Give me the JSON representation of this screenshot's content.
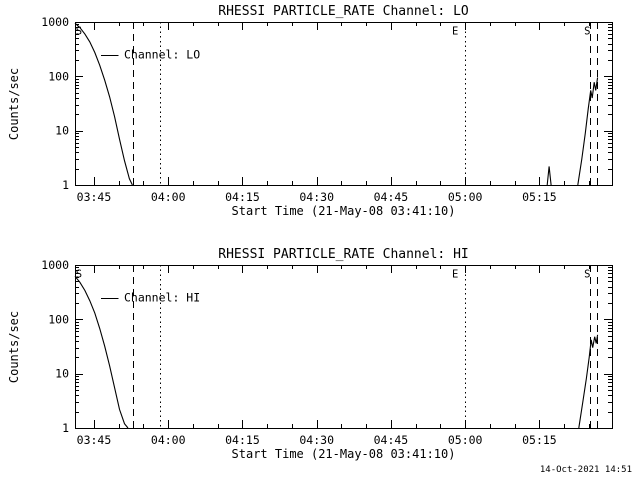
{
  "window": {
    "timestamp": "14-Oct-2021 14:51"
  },
  "time_axis": {
    "start_time": "21-May-08 03:41:10",
    "t_max_minutes": 108.5,
    "minor_step": 5,
    "major_ticks": [
      {
        "t": 3.8333,
        "label": "03:45"
      },
      {
        "t": 18.8333,
        "label": "04:00"
      },
      {
        "t": 33.8333,
        "label": "04:15"
      },
      {
        "t": 48.8333,
        "label": "04:30"
      },
      {
        "t": 63.8333,
        "label": "04:45"
      },
      {
        "t": 78.8333,
        "label": "05:00"
      },
      {
        "t": 93.8333,
        "label": "05:15"
      }
    ]
  },
  "chart_data": [
    {
      "type": "line",
      "channel": "LO",
      "title": "RHESSI PARTICLE_RATE Channel: LO",
      "xlabel": "Start Time (21-May-08 03:41:10)",
      "ylabel": "Counts/sec",
      "yscale": "log",
      "ylim": [
        1,
        1000
      ],
      "y_ticks": [
        {
          "value": 1,
          "label": "1"
        },
        {
          "value": 10,
          "label": "10"
        },
        {
          "value": 100,
          "label": "100"
        },
        {
          "value": 1000,
          "label": "1000"
        }
      ],
      "legend": {
        "label": "Channel: LO",
        "t": 5.3,
        "value": 250,
        "line_len": 3.5
      },
      "annotations": [
        {
          "text": "S",
          "t": 0.8,
          "value": 700
        },
        {
          "text": "E",
          "t": 76.8,
          "value": 700
        },
        {
          "text": "S",
          "t": 103.5,
          "value": 700
        }
      ],
      "vlines": [
        {
          "t": 11.8,
          "style": "dashed"
        },
        {
          "t": 17.2,
          "style": "dotted"
        },
        {
          "t": 78.8333,
          "style": "dotted"
        },
        {
          "t": 104.1,
          "style": "dashed"
        },
        {
          "t": 105.5,
          "style": "dashed"
        }
      ],
      "series": [
        {
          "name": "decay",
          "points": [
            [
              0,
              950
            ],
            [
              1,
              790
            ],
            [
              2,
              600
            ],
            [
              3,
              430
            ],
            [
              4,
              275
            ],
            [
              5,
              160
            ],
            [
              6,
              85
            ],
            [
              7,
              42
            ],
            [
              8,
              18
            ],
            [
              9,
              7
            ],
            [
              10,
              2.8
            ],
            [
              11,
              1.3
            ],
            [
              11.6,
              1
            ]
          ]
        },
        {
          "name": "spike",
          "points": [
            [
              95.4,
              1
            ],
            [
              95.8,
              2.2
            ],
            [
              96.2,
              1
            ]
          ]
        },
        {
          "name": "rise",
          "points": [
            [
              101.6,
              1
            ],
            [
              102.4,
              3
            ],
            [
              103.1,
              9
            ],
            [
              103.7,
              25
            ],
            [
              104.2,
              55
            ],
            [
              104.5,
              40
            ],
            [
              104.9,
              78
            ],
            [
              105.2,
              55
            ],
            [
              105.6,
              95
            ]
          ]
        }
      ]
    },
    {
      "type": "line",
      "channel": "HI",
      "title": "RHESSI PARTICLE_RATE Channel: HI",
      "xlabel": "Start Time (21-May-08 03:41:10)",
      "ylabel": "Counts/sec",
      "yscale": "log",
      "ylim": [
        1,
        1000
      ],
      "y_ticks": [
        {
          "value": 1,
          "label": "1"
        },
        {
          "value": 10,
          "label": "10"
        },
        {
          "value": 100,
          "label": "100"
        },
        {
          "value": 1000,
          "label": "1000"
        }
      ],
      "legend": {
        "label": "Channel: HI",
        "t": 5.3,
        "value": 250,
        "line_len": 3.5
      },
      "annotations": [
        {
          "text": "S",
          "t": 0.8,
          "value": 700
        },
        {
          "text": "E",
          "t": 76.8,
          "value": 700
        },
        {
          "text": "S",
          "t": 103.5,
          "value": 700
        }
      ],
      "vlines": [
        {
          "t": 11.8,
          "style": "dashed"
        },
        {
          "t": 17.2,
          "style": "dotted"
        },
        {
          "t": 78.8333,
          "style": "dotted"
        },
        {
          "t": 104.1,
          "style": "dashed"
        },
        {
          "t": 105.5,
          "style": "dashed"
        }
      ],
      "series": [
        {
          "name": "decay",
          "points": [
            [
              0,
              620
            ],
            [
              1,
              480
            ],
            [
              2,
              340
            ],
            [
              3,
              220
            ],
            [
              4,
              130
            ],
            [
              5,
              68
            ],
            [
              6,
              32
            ],
            [
              7,
              14
            ],
            [
              8,
              5.5
            ],
            [
              9,
              2.2
            ],
            [
              10,
              1.2
            ],
            [
              10.7,
              1
            ]
          ]
        },
        {
          "name": "rise",
          "points": [
            [
              101.8,
              1
            ],
            [
              102.6,
              3
            ],
            [
              103.3,
              8
            ],
            [
              103.9,
              20
            ],
            [
              104.3,
              42
            ],
            [
              104.6,
              30
            ],
            [
              105,
              48
            ],
            [
              105.3,
              36
            ],
            [
              105.6,
              52
            ]
          ]
        }
      ]
    }
  ]
}
